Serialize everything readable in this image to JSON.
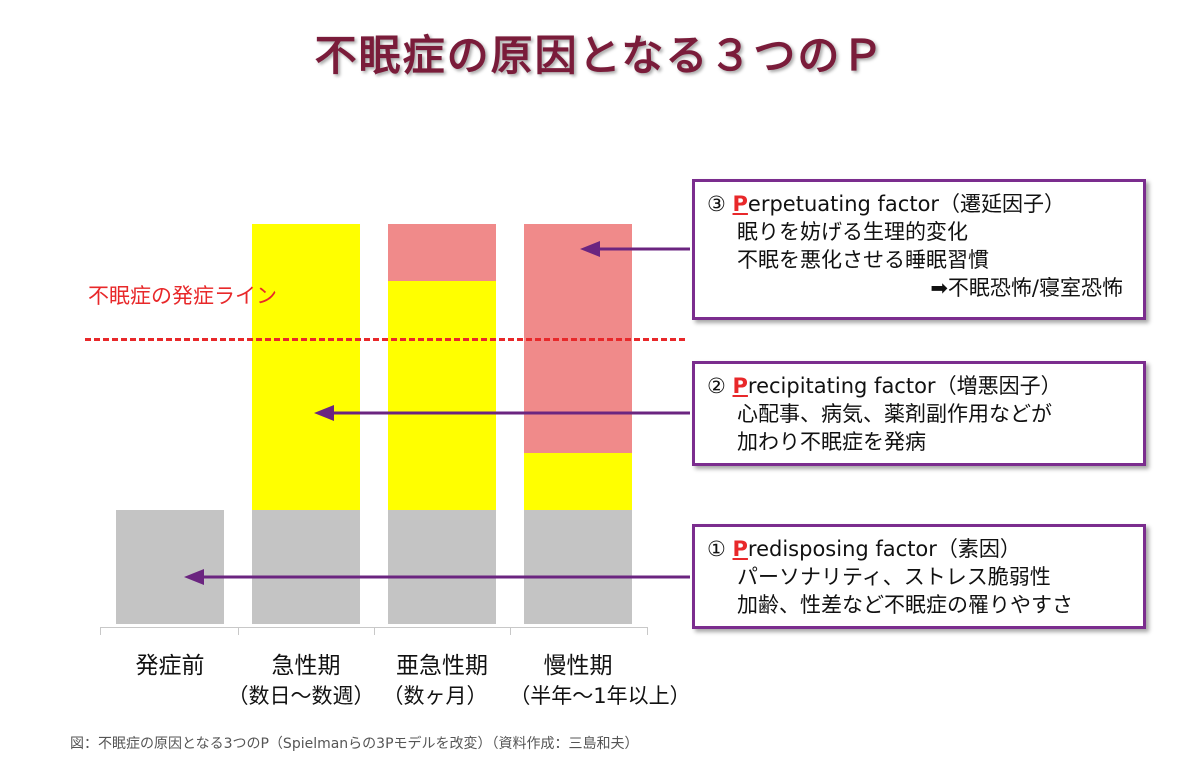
{
  "title": "不眠症の原因となる３つのＰ",
  "onset_line_label": "不眠症の発症ライン",
  "colors": {
    "predisposing": "#c4c4c4",
    "precipitating": "#ffff00",
    "perpetuating": "#f08a8a",
    "frame": "#7b2d8e",
    "onset": "#e8282a",
    "title": "#7a1c3a"
  },
  "phases": [
    {
      "name": "発症前",
      "sub": ""
    },
    {
      "name": "急性期",
      "sub": "（数日～数週）"
    },
    {
      "name": "亜急性期",
      "sub": "（数ヶ月）"
    },
    {
      "name": "慢性期",
      "sub": "（半年～1年以上）"
    }
  ],
  "factors": {
    "perpetuating": {
      "num": "③",
      "initial": "P",
      "rest": "erpetuating factor（遷延因子）",
      "lines": [
        "眠りを妨げる生理的変化",
        "不眠を悪化させる睡眠習慣"
      ],
      "extra": "➡不眠恐怖/寝室恐怖"
    },
    "precipitating": {
      "num": "②",
      "initial": "P",
      "rest": "recipitating factor（増悪因子）",
      "lines": [
        "心配事、病気、薬剤副作用などが",
        "加わり不眠症を発病"
      ]
    },
    "predisposing": {
      "num": "①",
      "initial": "P",
      "rest": "redisposing factor（素因）",
      "lines": [
        "パーソナリティ、ストレス脆弱性",
        "加齢、性差など不眠症の罹りやすさ"
      ]
    }
  },
  "caption": "図：不眠症の原因となる3つのP（Spielmanらの3Pモデルを改変）（資料作成：三島和夫）"
}
